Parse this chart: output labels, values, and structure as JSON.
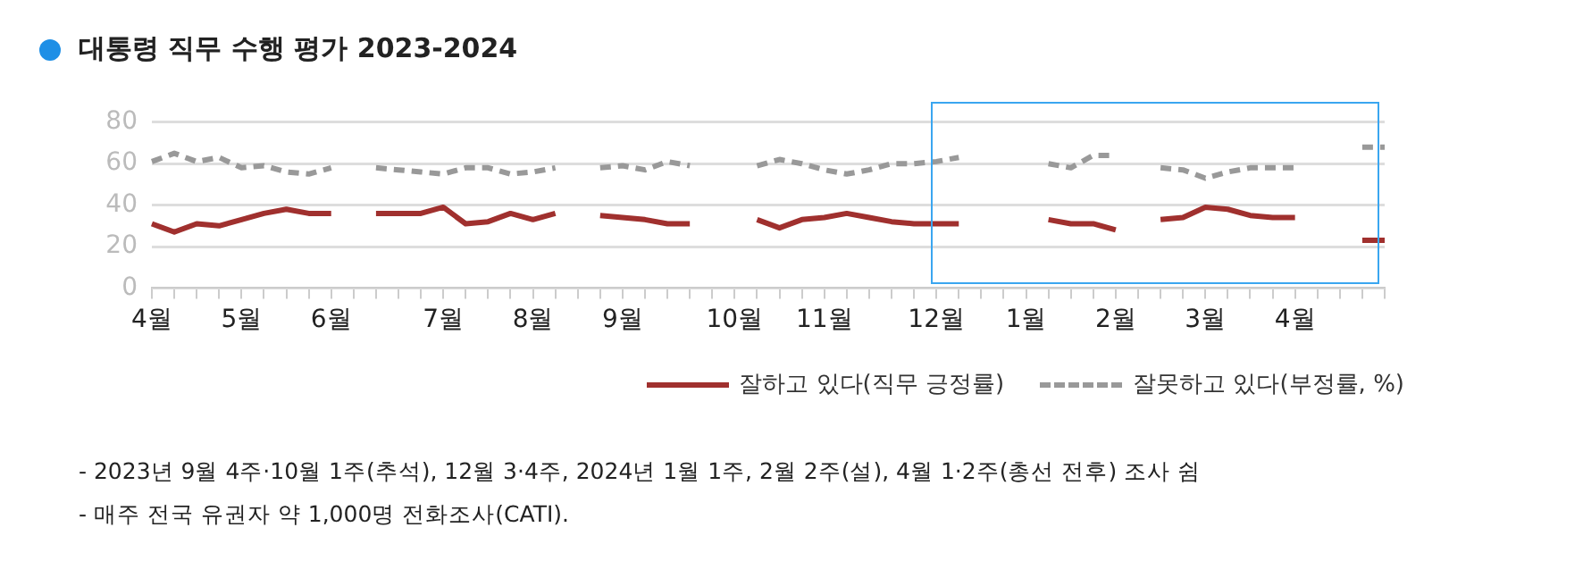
{
  "chart_data": {
    "type": "line",
    "title": "대통령 직무 수행 평가 2023-2024",
    "categories": [
      "4월",
      null,
      null,
      null,
      "5월",
      null,
      null,
      null,
      "6월",
      null,
      null,
      null,
      null,
      "7월",
      null,
      null,
      null,
      "8월",
      null,
      null,
      null,
      "9월",
      null,
      null,
      null,
      null,
      "10월",
      null,
      null,
      null,
      "11월",
      null,
      null,
      null,
      null,
      "12월",
      null,
      null,
      null,
      "1월",
      null,
      null,
      null,
      "2월",
      null,
      null,
      null,
      "3월",
      null,
      null,
      null,
      "4월",
      null,
      null,
      null,
      null
    ],
    "series": [
      {
        "name": "잘하고 있다(직무 긍정률)",
        "color": "#a0302e",
        "line_style": "solid",
        "values": [
          31,
          27,
          31,
          30,
          33,
          36,
          38,
          36,
          36,
          null,
          36,
          36,
          36,
          39,
          31,
          32,
          36,
          33,
          36,
          null,
          35,
          34,
          33,
          31,
          31,
          null,
          null,
          33,
          29,
          33,
          34,
          36,
          34,
          32,
          31,
          31,
          31,
          null,
          null,
          null,
          33,
          31,
          31,
          28,
          null,
          33,
          34,
          39,
          38,
          35,
          34,
          34,
          null,
          null,
          23,
          23
        ]
      },
      {
        "name": "잘못하고 있다(부정률, %)",
        "color": "#999999",
        "line_style": "dashed",
        "values": [
          61,
          65,
          61,
          63,
          58,
          59,
          56,
          55,
          58,
          null,
          58,
          57,
          56,
          55,
          58,
          58,
          55,
          56,
          58,
          null,
          58,
          59,
          57,
          61,
          59,
          null,
          null,
          59,
          62,
          60,
          57,
          55,
          57,
          60,
          60,
          61,
          63,
          null,
          null,
          null,
          60,
          58,
          64,
          64,
          null,
          58,
          57,
          53,
          56,
          58,
          58,
          58,
          null,
          null,
          68,
          68
        ]
      }
    ],
    "ylim": [
      0,
      80
    ],
    "yticks": [
      0,
      20,
      40,
      60,
      80
    ],
    "grid": "y",
    "legend": "bottom right",
    "marker": "none",
    "annotations": [
      "- 2023년 9월 4주·10월 1주(추석), 12월 3·4주, 2024년 1월 1주, 2월 2주(설), 4월 1·2주(총선 전후) 조사 쉼",
      "- 매주 전국 유권자 약 1,000명 전화조사(CATI)."
    ]
  }
}
